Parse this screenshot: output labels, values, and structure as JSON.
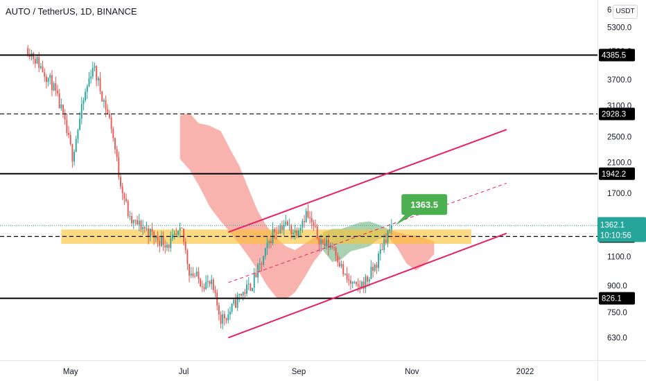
{
  "header": {
    "symbol": "AUTO / TetherUS, 1D, BINANCE",
    "currency": "USDT",
    "clipped_top_label": "6"
  },
  "colors": {
    "bullish": "#26a69a",
    "bearish": "#ef5350",
    "channel": "#e91e63",
    "zone": "#fbc02d",
    "cloud_red": "#f8a6a1",
    "cloud_green": "#9cc9a6",
    "last_price_tag": "#26a69a",
    "callout": "#4caf50"
  },
  "chart_data": {
    "type": "candlestick",
    "title": "AUTO / TetherUS, 1D, BINANCE",
    "y_scale": "log",
    "ylim": [
      540,
      6400
    ],
    "y_ticks": [
      630,
      750,
      900,
      1100,
      1400,
      1700,
      2100,
      2500,
      3100,
      3700,
      4500,
      5300
    ],
    "y_tick_labels": [
      "630.0",
      "750.0",
      "900.0",
      "1100.0",
      "1400.0",
      "1700.0",
      "2100.0",
      "2500.0",
      "3100.0",
      "3700.0",
      "4500.0",
      "5300.0"
    ],
    "x_range": [
      "2021-03-24",
      "2022-02-09"
    ],
    "x_ticks": [
      {
        "date": "2021-05-01",
        "label": "May"
      },
      {
        "date": "2021-07-01",
        "label": "Jul"
      },
      {
        "date": "2021-09-01",
        "label": "Sep"
      },
      {
        "date": "2021-11-01",
        "label": "Nov"
      },
      {
        "date": "2022-01-01",
        "label": "2022"
      }
    ],
    "price_waypoints": [
      {
        "date": "2021-04-08",
        "price": 4600
      },
      {
        "date": "2021-04-13",
        "price": 4200
      },
      {
        "date": "2021-04-21",
        "price": 3600
      },
      {
        "date": "2021-04-26",
        "price": 3000
      },
      {
        "date": "2021-05-02",
        "price": 2200
      },
      {
        "date": "2021-05-08",
        "price": 3200
      },
      {
        "date": "2021-05-13",
        "price": 4100
      },
      {
        "date": "2021-05-19",
        "price": 3200
      },
      {
        "date": "2021-05-23",
        "price": 2700
      },
      {
        "date": "2021-05-27",
        "price": 1950
      },
      {
        "date": "2021-06-02",
        "price": 1400
      },
      {
        "date": "2021-06-09",
        "price": 1350
      },
      {
        "date": "2021-06-16",
        "price": 1250
      },
      {
        "date": "2021-06-23",
        "price": 1200
      },
      {
        "date": "2021-06-30",
        "price": 1300
      },
      {
        "date": "2021-07-04",
        "price": 1000
      },
      {
        "date": "2021-07-10",
        "price": 930
      },
      {
        "date": "2021-07-16",
        "price": 900
      },
      {
        "date": "2021-07-21",
        "price": 720
      },
      {
        "date": "2021-07-25",
        "price": 740
      },
      {
        "date": "2021-07-31",
        "price": 840
      },
      {
        "date": "2021-08-06",
        "price": 900
      },
      {
        "date": "2021-08-12",
        "price": 1050
      },
      {
        "date": "2021-08-18",
        "price": 1300
      },
      {
        "date": "2021-08-24",
        "price": 1380
      },
      {
        "date": "2021-08-30",
        "price": 1300
      },
      {
        "date": "2021-09-05",
        "price": 1480
      },
      {
        "date": "2021-09-10",
        "price": 1300
      },
      {
        "date": "2021-09-14",
        "price": 1200
      },
      {
        "date": "2021-09-20",
        "price": 1180
      },
      {
        "date": "2021-09-26",
        "price": 950
      },
      {
        "date": "2021-10-02",
        "price": 880
      },
      {
        "date": "2021-10-08",
        "price": 940
      },
      {
        "date": "2021-10-13",
        "price": 1050
      },
      {
        "date": "2021-10-17",
        "price": 1230
      },
      {
        "date": "2021-10-21",
        "price": 1362.1
      }
    ],
    "horizontal_levels": [
      {
        "price": 4385.5,
        "label": "4385.5",
        "style": "solid"
      },
      {
        "price": 2928.3,
        "label": "2928.3",
        "style": "dashed"
      },
      {
        "price": 1942.2,
        "label": "1942.2",
        "style": "solid"
      },
      {
        "price": 1262.4,
        "label": "1262.4",
        "style": "dashed"
      },
      {
        "price": 826.1,
        "label": "826.1",
        "style": "solid"
      }
    ],
    "support_zone": {
      "from_date": "2021-04-26",
      "to_date": "2021-12-03",
      "low": 1200,
      "high": 1325
    },
    "channel": {
      "upper": [
        {
          "date": "2021-07-25",
          "price": 1300
        },
        {
          "date": "2021-12-22",
          "price": 2630
        }
      ],
      "lower": [
        {
          "date": "2021-07-25",
          "price": 630
        },
        {
          "date": "2021-12-22",
          "price": 1290
        }
      ],
      "middle": [
        {
          "date": "2021-07-25",
          "price": 920
        },
        {
          "date": "2021-12-22",
          "price": 1820
        }
      ]
    },
    "cloud_red": [
      {
        "date": "2021-06-29",
        "top": 2900,
        "bottom": 2150
      },
      {
        "date": "2021-07-04",
        "top": 2950,
        "bottom": 2000
      },
      {
        "date": "2021-07-09",
        "top": 2750,
        "bottom": 1800
      },
      {
        "date": "2021-07-15",
        "top": 2700,
        "bottom": 1550
      },
      {
        "date": "2021-07-21",
        "top": 2600,
        "bottom": 1400
      },
      {
        "date": "2021-07-26",
        "top": 2300,
        "bottom": 1300
      },
      {
        "date": "2021-07-31",
        "top": 2050,
        "bottom": 1200
      },
      {
        "date": "2021-08-05",
        "top": 1750,
        "bottom": 1100
      },
      {
        "date": "2021-08-10",
        "top": 1500,
        "bottom": 1000
      },
      {
        "date": "2021-08-15",
        "top": 1350,
        "bottom": 900
      },
      {
        "date": "2021-08-20",
        "top": 1250,
        "bottom": 830
      },
      {
        "date": "2021-08-25",
        "top": 1180,
        "bottom": 820
      },
      {
        "date": "2021-08-30",
        "top": 1150,
        "bottom": 860
      },
      {
        "date": "2021-09-04",
        "top": 1200,
        "bottom": 950
      },
      {
        "date": "2021-09-09",
        "top": 1250,
        "bottom": 1060
      },
      {
        "date": "2021-09-14",
        "top": 1280,
        "bottom": 1150
      }
    ],
    "cloud_green": [
      {
        "date": "2021-09-14",
        "top": 1300,
        "bottom": 1150
      },
      {
        "date": "2021-09-19",
        "top": 1330,
        "bottom": 1060
      },
      {
        "date": "2021-09-24",
        "top": 1330,
        "bottom": 1080
      },
      {
        "date": "2021-09-29",
        "top": 1360,
        "bottom": 1140
      },
      {
        "date": "2021-10-04",
        "top": 1390,
        "bottom": 1160
      },
      {
        "date": "2021-10-09",
        "top": 1400,
        "bottom": 1180
      },
      {
        "date": "2021-10-14",
        "top": 1370,
        "bottom": 1240
      },
      {
        "date": "2021-10-19",
        "top": 1330,
        "bottom": 1260
      }
    ],
    "cloud_red_future": [
      {
        "date": "2021-10-19",
        "top": 1330,
        "bottom": 1260
      },
      {
        "date": "2021-10-24",
        "top": 1300,
        "bottom": 1170
      },
      {
        "date": "2021-10-29",
        "top": 1280,
        "bottom": 1050
      },
      {
        "date": "2021-11-03",
        "top": 1270,
        "bottom": 1000
      },
      {
        "date": "2021-11-08",
        "top": 1250,
        "bottom": 1040
      },
      {
        "date": "2021-11-13",
        "top": 1220,
        "bottom": 1120
      }
    ],
    "annotation": {
      "text": "1363.5",
      "anchor_date": "2021-10-23",
      "anchor_price": 1363.5
    },
    "last_price": {
      "value": "1362.1",
      "countdown": "10:10:56",
      "price": 1362.1
    }
  }
}
